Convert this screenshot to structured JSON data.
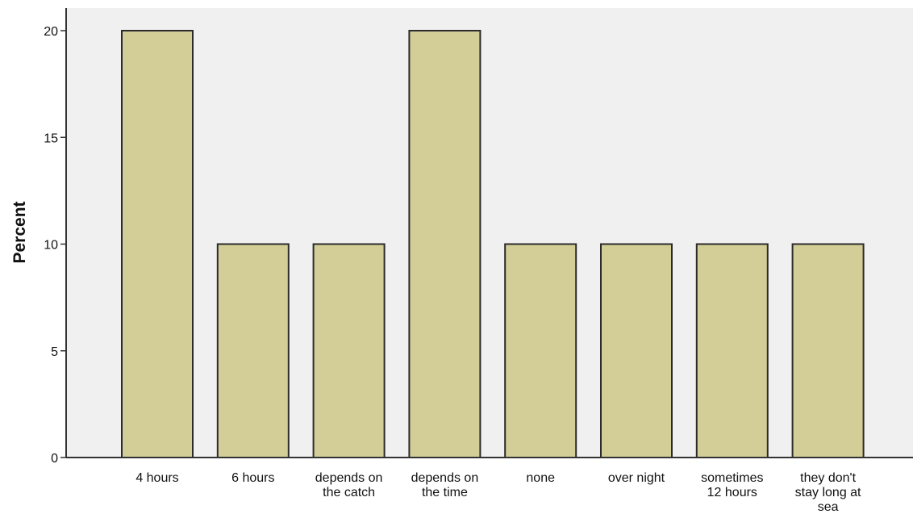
{
  "chart_data": {
    "type": "bar",
    "categories": [
      [
        "4 hours"
      ],
      [
        "6 hours"
      ],
      [
        "depends on",
        "the catch"
      ],
      [
        "depends on",
        "the time"
      ],
      [
        "none"
      ],
      [
        "over night"
      ],
      [
        "sometimes",
        "12 hours"
      ],
      [
        "they don't",
        "stay long at",
        "sea"
      ]
    ],
    "values": [
      20,
      10,
      10,
      20,
      10,
      10,
      10,
      10
    ],
    "title": "",
    "xlabel": "",
    "ylabel": "Percent",
    "ylim": [
      0,
      20
    ],
    "yticks": [
      0,
      5,
      10,
      15,
      20
    ],
    "grid": false,
    "colors": {
      "bar_fill": "#d3cd97",
      "bar_stroke": "#2b2b2b",
      "plot_background": "#f0f0f0",
      "axis": "#333333"
    }
  }
}
